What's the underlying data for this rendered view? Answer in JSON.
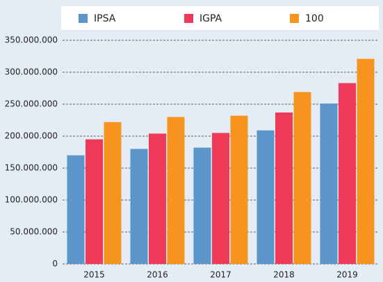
{
  "chart_data": {
    "type": "bar",
    "categories": [
      "2015",
      "2016",
      "2017",
      "2018",
      "2019"
    ],
    "series": [
      {
        "name": "IPSA",
        "color": "#5b95c9",
        "values": [
          170000000,
          180000000,
          182000000,
          209000000,
          251000000
        ]
      },
      {
        "name": "IGPA",
        "color": "#ee3a58",
        "values": [
          195000000,
          204000000,
          205000000,
          237000000,
          283000000
        ]
      },
      {
        "name": "100",
        "color": "#f7941d",
        "values": [
          222000000,
          230000000,
          232000000,
          269000000,
          321000000
        ]
      }
    ],
    "ylim": [
      0,
      350000000
    ],
    "yticks": [
      0,
      {
        "value": 50000000,
        "label": "50.000.000"
      },
      {
        "value": 100000000,
        "label": "100.000.000"
      },
      {
        "value": 150000000,
        "label": "150.000.000"
      },
      {
        "value": 200000000,
        "label": "200.000.000"
      },
      {
        "value": 250000000,
        "label": "250.000.000"
      },
      {
        "value": 300000000,
        "label": "300.000.000"
      },
      {
        "value": 350000000,
        "label": "350.000.000"
      }
    ],
    "grid": true
  }
}
